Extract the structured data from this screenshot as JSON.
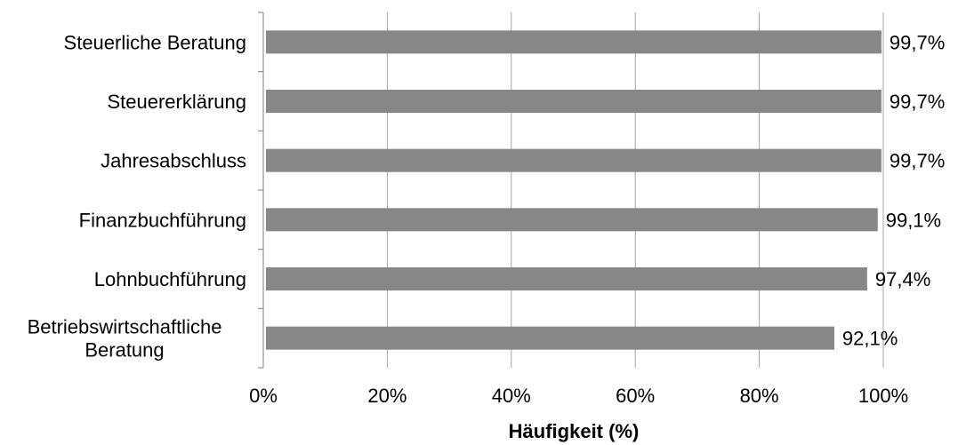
{
  "chart_data": {
    "type": "bar",
    "orientation": "horizontal",
    "categories": [
      "Steuerliche Beratung",
      "Steuererklärung",
      "Jahresabschluss",
      "Finanzbuchführung",
      "Lohnbuchführung",
      "Betriebswirtschaftliche Beratung"
    ],
    "category_lines": [
      [
        "Steuerliche Beratung"
      ],
      [
        "Steuererklärung"
      ],
      [
        "Jahresabschluss"
      ],
      [
        "Finanzbuchführung"
      ],
      [
        "Lohnbuchführung"
      ],
      [
        "Betriebswirtschaftliche",
        "Beratung"
      ]
    ],
    "values": [
      99.7,
      99.7,
      99.7,
      99.1,
      97.4,
      92.1
    ],
    "data_labels": [
      "99,7%",
      "99,7%",
      "99,7%",
      "99,1%",
      "97,4%",
      "92,1%"
    ],
    "xlabel": "Häufigkeit (%)",
    "xlim": [
      0,
      100
    ],
    "x_ticks": [
      0,
      20,
      40,
      60,
      80,
      100
    ],
    "x_tick_labels": [
      "0%",
      "20%",
      "40%",
      "60%",
      "80%",
      "100%"
    ],
    "grid": true,
    "bar_color": "#878787",
    "grid_color": "#a6a6a6",
    "axis_color": "#808080"
  }
}
